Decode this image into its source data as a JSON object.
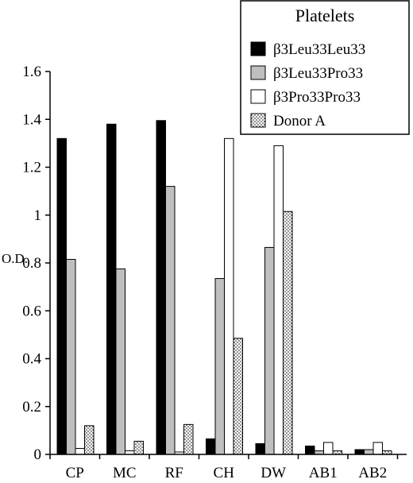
{
  "chart_data": {
    "type": "bar",
    "categories": [
      "CP",
      "MC",
      "RF",
      "CH",
      "DW",
      "AB1",
      "AB2"
    ],
    "series": [
      {
        "name": "β3Leu33Leu33",
        "fill": "#000000",
        "pattern": "solid",
        "values": [
          1.32,
          1.38,
          1.395,
          0.065,
          0.045,
          0.035,
          0.02
        ]
      },
      {
        "name": "β3Leu33Pro33",
        "fill": "#bfbfbf",
        "pattern": "solid",
        "values": [
          0.815,
          0.775,
          1.12,
          0.735,
          0.865,
          0.015,
          0.02
        ]
      },
      {
        "name": "β3Pro33Pro33",
        "fill": "#ffffff",
        "pattern": "solid",
        "values": [
          0.025,
          0.015,
          0.01,
          1.32,
          1.29,
          0.05,
          0.05
        ]
      },
      {
        "name": "Donor A",
        "fill": "#ffffff",
        "pattern": "dots",
        "values": [
          0.12,
          0.055,
          0.125,
          0.485,
          1.015,
          0.015,
          0.015
        ]
      }
    ],
    "legend_title": "Platelets",
    "legend_position": "top-right",
    "ylabel": "O.D.",
    "xlabel": "",
    "ylim": [
      0,
      1.6
    ],
    "yticks": [
      0,
      0.2,
      0.4,
      0.6,
      0.8,
      1,
      1.2,
      1.4,
      1.6
    ],
    "ytick_labels": [
      "0",
      "0.2",
      "0.4",
      "0.6",
      "0.8",
      "1",
      "1.2",
      "1.4",
      "1.6"
    ],
    "grid": false
  }
}
